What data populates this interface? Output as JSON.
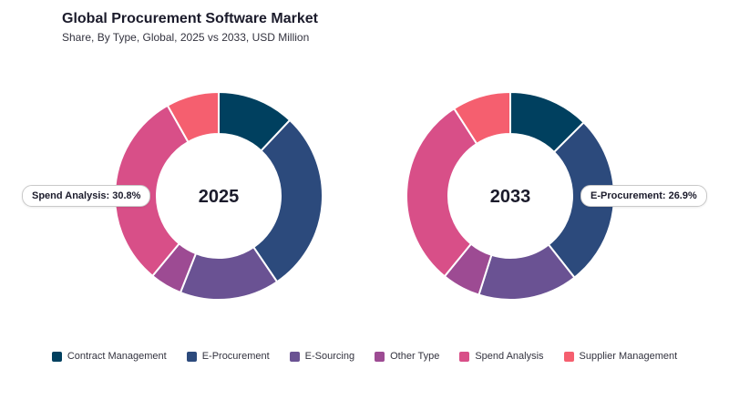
{
  "header": {
    "title": "Global Procurement Software Market",
    "subtitle": "Share, By Type, Global, 2025 vs 2033, USD Million"
  },
  "chart_data": [
    {
      "type": "pie",
      "variant": "donut",
      "center_label": "2025",
      "categories": [
        "Contract Management",
        "E-Procurement",
        "E-Sourcing",
        "Other Type",
        "Spend Analysis",
        "Supplier Management"
      ],
      "values": [
        12.0,
        28.5,
        15.5,
        5.0,
        30.8,
        8.2
      ],
      "colors": [
        "#00405f",
        "#2c4a7c",
        "#6a5293",
        "#9d4b93",
        "#d84f88",
        "#f55f6f"
      ],
      "callout": {
        "category": "Spend Analysis",
        "text": "Spend Analysis: 30.8%"
      }
    },
    {
      "type": "pie",
      "variant": "donut",
      "center_label": "2033",
      "categories": [
        "Contract Management",
        "E-Procurement",
        "E-Sourcing",
        "Other Type",
        "Spend Analysis",
        "Supplier Management"
      ],
      "values": [
        12.5,
        26.9,
        15.5,
        6.0,
        30.0,
        9.1
      ],
      "colors": [
        "#00405f",
        "#2c4a7c",
        "#6a5293",
        "#9d4b93",
        "#d84f88",
        "#f55f6f"
      ],
      "callout": {
        "category": "E-Procurement",
        "text": "E-Procurement: 26.9%"
      }
    }
  ],
  "legend": {
    "items": [
      {
        "label": "Contract Management",
        "color": "#00405f"
      },
      {
        "label": "E-Procurement",
        "color": "#2c4a7c"
      },
      {
        "label": "E-Sourcing",
        "color": "#6a5293"
      },
      {
        "label": "Other Type",
        "color": "#9d4b93"
      },
      {
        "label": "Spend Analysis",
        "color": "#d84f88"
      },
      {
        "label": "Supplier Management",
        "color": "#f55f6f"
      }
    ]
  }
}
